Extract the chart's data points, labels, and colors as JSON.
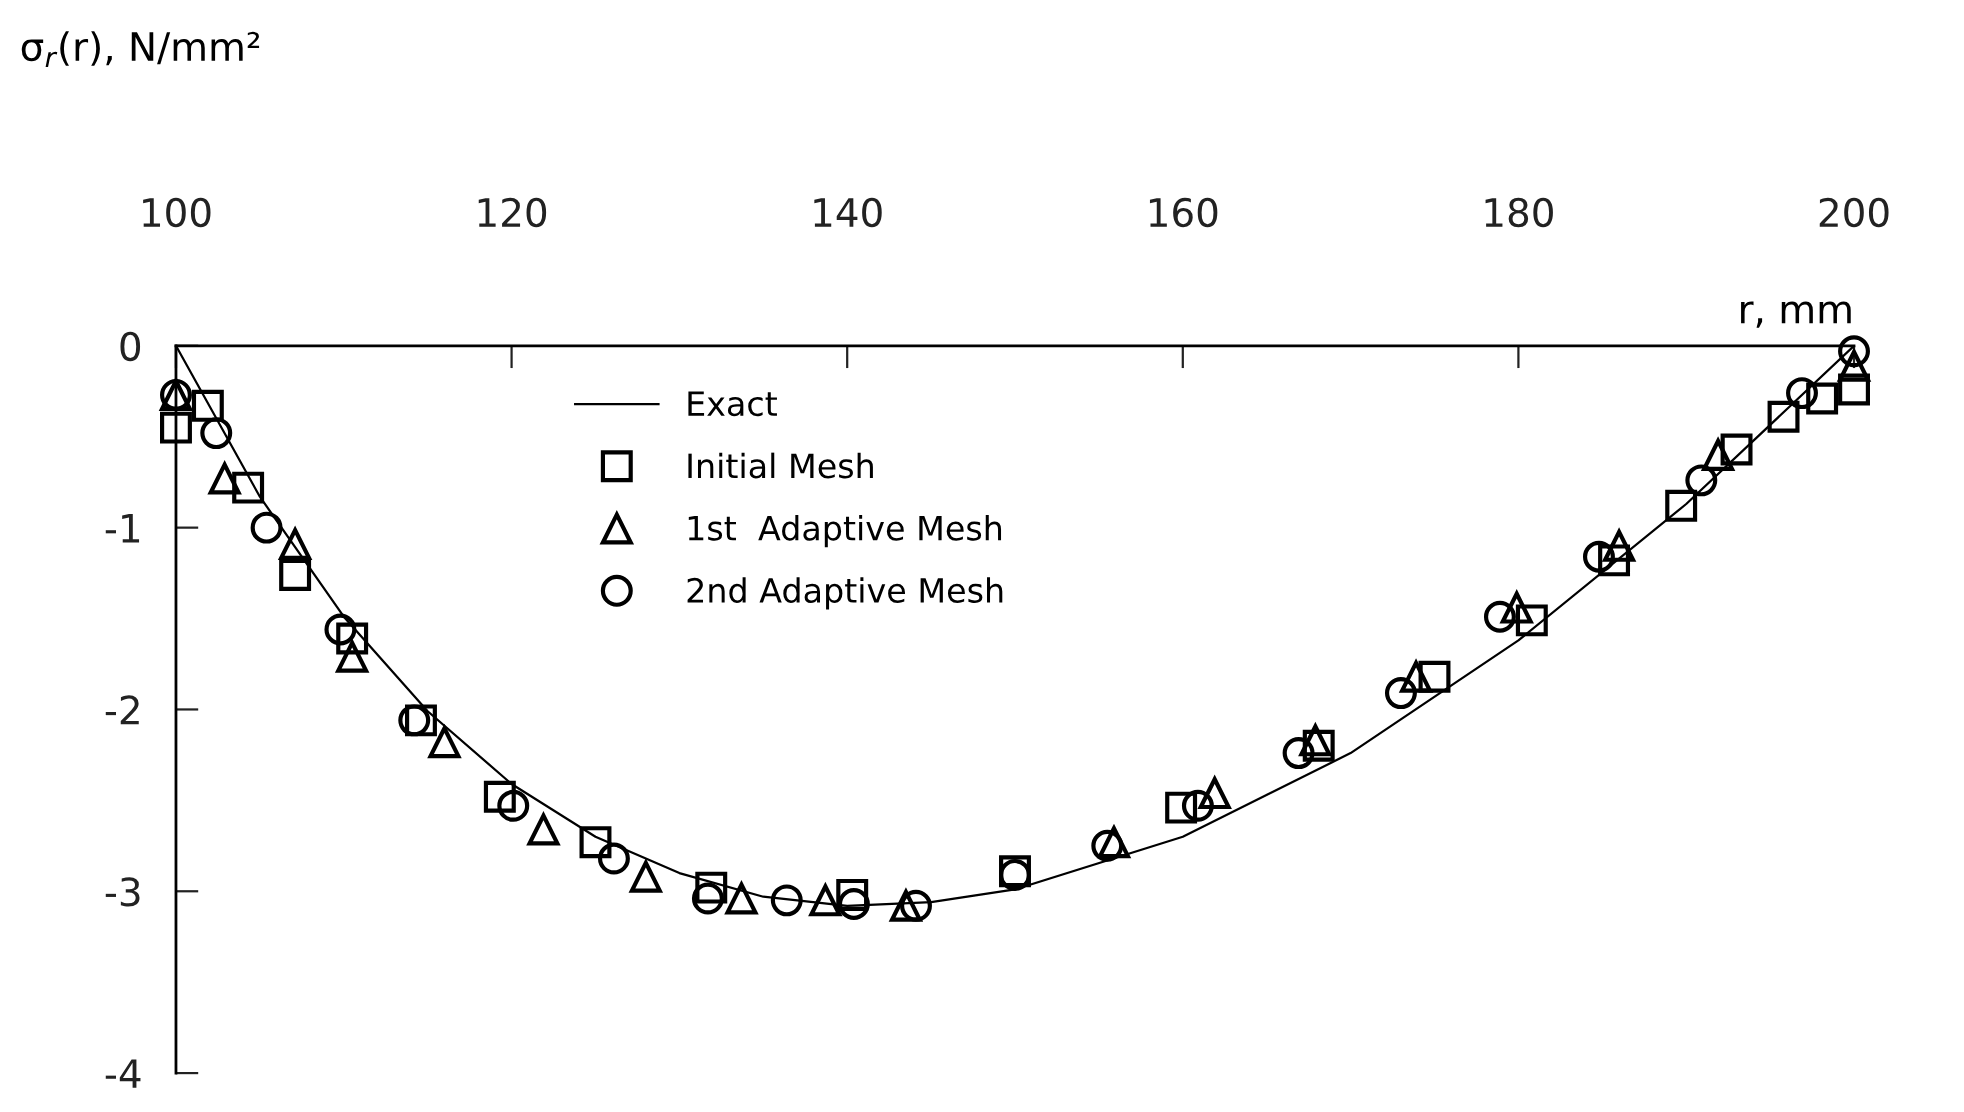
{
  "chart_data": {
    "type": "scatter",
    "ylabel": "σ$_{r}$(r), N/mm²",
    "xlabel": "r, mm",
    "xlim": [
      100,
      200
    ],
    "xticks": [
      100,
      120,
      140,
      160,
      180,
      200
    ],
    "ylim": [
      -4,
      0
    ],
    "yticks": [
      -4,
      -3,
      -2,
      -1,
      0
    ],
    "grid": false,
    "legend": "top",
    "series": [
      {
        "name": "Exact",
        "type": "line",
        "color": "#000000",
        "marker": "none",
        "x": [
          100,
          105,
          110,
          115,
          120,
          125,
          130,
          135,
          140,
          145,
          150,
          160,
          170,
          180,
          190,
          200
        ],
        "values": [
          0,
          -0.83,
          -1.49,
          -2.01,
          -2.41,
          -2.7,
          -2.9,
          -3.03,
          -3.08,
          -3.06,
          -2.99,
          -2.7,
          -2.24,
          -1.62,
          -0.87,
          0
        ]
      },
      {
        "name": "Initial Mesh",
        "color": "#000000",
        "marker": "square",
        "x": [
          100,
          101.9,
          104.3,
          107.1,
          110.5,
          114.6,
          119.3,
          125.0,
          131.9,
          140.3,
          150.0,
          159.9,
          168.1,
          175.0,
          180.8,
          185.7,
          189.7,
          193.0,
          195.8,
          198.1,
          200
        ],
        "values": [
          -0.45,
          -0.33,
          -0.78,
          -1.26,
          -1.61,
          -2.06,
          -2.48,
          -2.73,
          -2.98,
          -3.02,
          -2.89,
          -2.54,
          -2.2,
          -1.82,
          -1.51,
          -1.18,
          -0.88,
          -0.57,
          -0.39,
          -0.29,
          -0.24
        ]
      },
      {
        "name": "1st  Adaptive Mesh",
        "color": "#000000",
        "marker": "triangle",
        "x": [
          100,
          102.9,
          107.1,
          110.5,
          116.0,
          121.9,
          128.0,
          133.7,
          138.7,
          143.5,
          155.9,
          161.9,
          167.9,
          173.9,
          179.9,
          186.0,
          191.9,
          200
        ],
        "values": [
          -0.27,
          -0.73,
          -1.09,
          -1.71,
          -2.18,
          -2.66,
          -2.92,
          -3.04,
          -3.05,
          -3.08,
          -2.73,
          -2.46,
          -2.17,
          -1.82,
          -1.44,
          -1.1,
          -0.6,
          -0.11
        ]
      },
      {
        "name": "2nd Adaptive Mesh",
        "color": "#000000",
        "marker": "circle",
        "x": [
          100,
          102.4,
          105.4,
          109.8,
          114.2,
          120.1,
          126.1,
          131.7,
          136.4,
          140.4,
          144.1,
          150.0,
          155.5,
          160.9,
          166.9,
          173.0,
          178.9,
          184.8,
          190.9,
          196.9,
          200
        ],
        "values": [
          -0.27,
          -0.48,
          -1.0,
          -1.56,
          -2.06,
          -2.53,
          -2.82,
          -3.04,
          -3.05,
          -3.07,
          -3.08,
          -2.91,
          -2.75,
          -2.53,
          -2.24,
          -1.91,
          -1.49,
          -1.16,
          -0.74,
          -0.26,
          -0.03
        ]
      }
    ]
  }
}
